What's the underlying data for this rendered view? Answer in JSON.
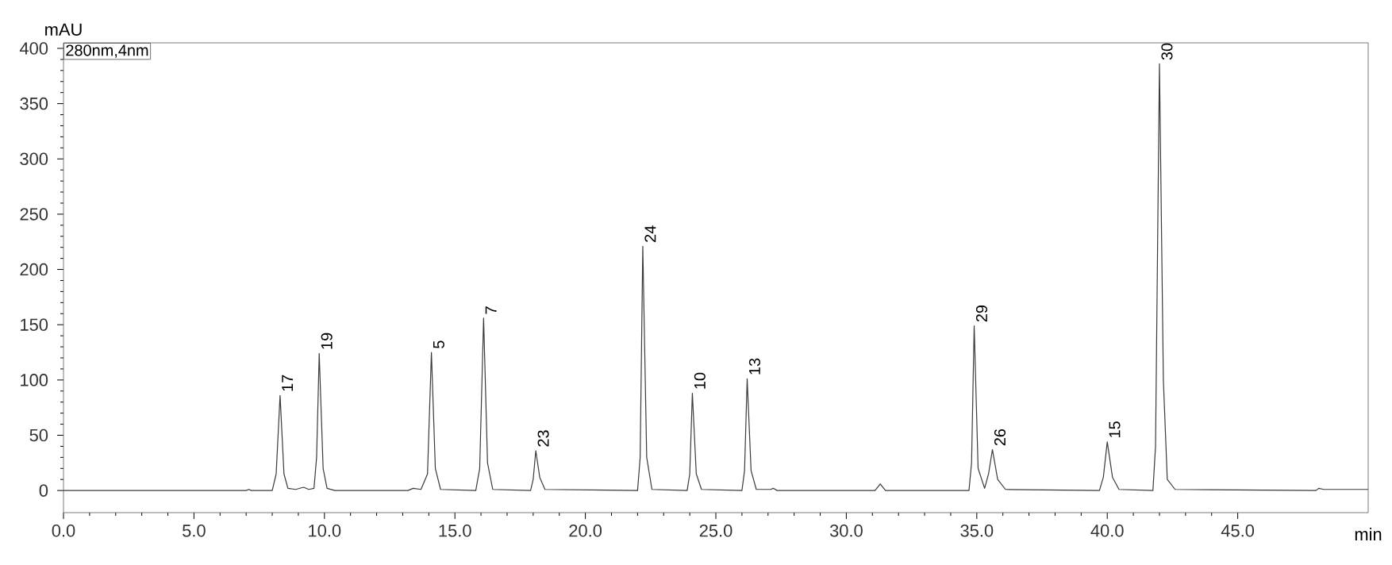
{
  "chart_data": {
    "type": "line",
    "color": "#3a3a3a",
    "xlabel": "min",
    "ylabel": "mAU",
    "xlim": [
      0,
      50
    ],
    "ylim": [
      -20,
      405
    ],
    "xticks": [
      {
        "value": 0,
        "label": "0.0"
      },
      {
        "value": 5,
        "label": "5.0"
      },
      {
        "value": 10,
        "label": "10.0"
      },
      {
        "value": 15,
        "label": "15.0"
      },
      {
        "value": 20,
        "label": "20.0"
      },
      {
        "value": 25,
        "label": "25.0"
      },
      {
        "value": 30,
        "label": "30.0"
      },
      {
        "value": 35,
        "label": "35.0"
      },
      {
        "value": 40,
        "label": "40.0"
      },
      {
        "value": 45,
        "label": "45.0"
      }
    ],
    "yticks": [
      0,
      50,
      100,
      150,
      200,
      250,
      300,
      350,
      400
    ],
    "x": [
      0,
      4.4,
      7.0,
      7.1,
      7.2,
      8.0,
      8.15,
      8.3,
      8.45,
      8.6,
      8.9,
      9.2,
      9.4,
      9.6,
      9.7,
      9.8,
      9.95,
      10.1,
      10.4,
      13.2,
      13.4,
      13.7,
      13.95,
      14.1,
      14.25,
      14.45,
      15.8,
      15.95,
      16.1,
      16.25,
      16.45,
      17.9,
      18.0,
      18.1,
      18.25,
      18.45,
      22.0,
      22.1,
      22.2,
      22.35,
      22.55,
      23.9,
      24.0,
      24.1,
      24.25,
      24.45,
      26.0,
      26.1,
      26.2,
      26.35,
      26.55,
      27.1,
      27.2,
      27.35,
      31.1,
      31.3,
      31.5,
      34.7,
      34.8,
      34.9,
      35.05,
      35.3,
      35.45,
      35.6,
      35.8,
      36.1,
      39.7,
      39.85,
      40.0,
      40.2,
      40.45,
      41.75,
      41.85,
      42.0,
      42.15,
      42.3,
      42.6,
      48.0,
      48.1,
      48.3,
      50
    ],
    "values": [
      0,
      0,
      0,
      1,
      0,
      0,
      15,
      86,
      15,
      2,
      1,
      3,
      1,
      2,
      30,
      124,
      20,
      2,
      0,
      0,
      2,
      1,
      15,
      125,
      20,
      1,
      0,
      20,
      156,
      25,
      1,
      0,
      10,
      36,
      12,
      1,
      0,
      30,
      221,
      30,
      1,
      0,
      15,
      88,
      15,
      1,
      0,
      18,
      101,
      18,
      1,
      1,
      2,
      0,
      0,
      6,
      0,
      0,
      25,
      149,
      20,
      2,
      15,
      37,
      10,
      1,
      0,
      12,
      44,
      12,
      1,
      0,
      40,
      386,
      100,
      10,
      1,
      0,
      2,
      1,
      1
    ],
    "annotations": [
      "280nm,4nm",
      {
        "text": "17",
        "x": 8.3,
        "y": 86
      },
      {
        "text": "19",
        "x": 9.8,
        "y": 124
      },
      {
        "text": "5",
        "x": 14.1,
        "y": 125
      },
      {
        "text": "7",
        "x": 16.1,
        "y": 156
      },
      {
        "text": "23",
        "x": 18.1,
        "y": 36
      },
      {
        "text": "24",
        "x": 22.2,
        "y": 221
      },
      {
        "text": "10",
        "x": 24.1,
        "y": 88
      },
      {
        "text": "13",
        "x": 26.2,
        "y": 101
      },
      {
        "text": "29",
        "x": 34.9,
        "y": 149
      },
      {
        "text": "26",
        "x": 35.6,
        "y": 37
      },
      {
        "text": "15",
        "x": 40.0,
        "y": 44
      },
      {
        "text": "30",
        "x": 42.0,
        "y": 386
      }
    ]
  }
}
